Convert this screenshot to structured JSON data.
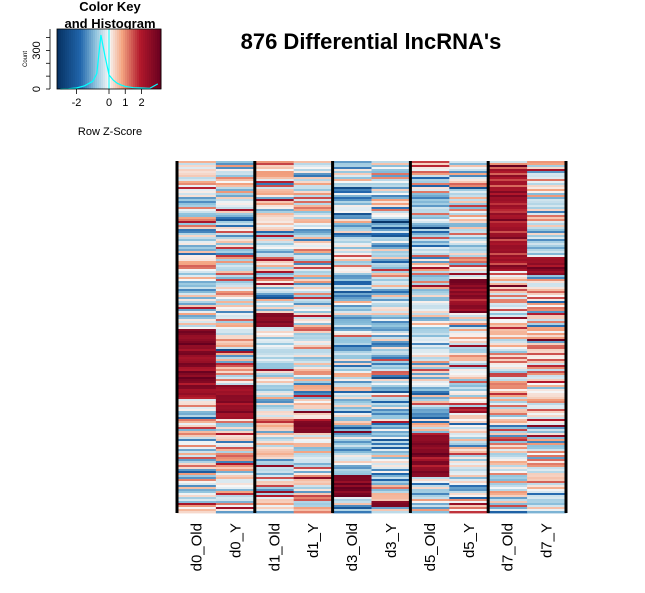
{
  "chart_data": {
    "type": "heatmap",
    "title": "876 Differential lncRNA's",
    "columns": [
      "d0_Old",
      "d0_Y",
      "d1_Old",
      "d1_Y",
      "d3_Old",
      "d3_Y",
      "d5_Old",
      "d5_Y",
      "d7_Old",
      "d7_Y"
    ],
    "row_count": 876,
    "column_groups": [
      {
        "label": "d0",
        "columns": [
          "d0_Old",
          "d0_Y"
        ]
      },
      {
        "label": "d1",
        "columns": [
          "d1_Old",
          "d1_Y"
        ]
      },
      {
        "label": "d3",
        "columns": [
          "d3_Old",
          "d3_Y"
        ]
      },
      {
        "label": "d5",
        "columns": [
          "d5_Old",
          "d5_Y"
        ]
      },
      {
        "label": "d7",
        "columns": [
          "d7_Old",
          "d7_Y"
        ]
      }
    ],
    "color_scale": {
      "low": "#053061",
      "mid_low": "#92c5de",
      "mid": "#f7f7f7",
      "mid_high": "#f4a582",
      "high": "#67001f",
      "range": [
        -3.2,
        3.2
      ]
    },
    "blocks": [
      {
        "column": "d0_Old",
        "from": 0.475,
        "to": 0.675,
        "zscore": 2.6
      },
      {
        "column": "d0_Y",
        "from": 0.635,
        "to": 0.735,
        "zscore": 2.5
      },
      {
        "column": "d1_Old",
        "from": 0.43,
        "to": 0.47,
        "zscore": 2.6
      },
      {
        "column": "d1_Y",
        "from": 0.735,
        "to": 0.775,
        "zscore": 2.6
      },
      {
        "column": "d3_Old",
        "from": 0.89,
        "to": 0.955,
        "zscore": 2.8
      },
      {
        "column": "d3_Y",
        "from": 0.965,
        "to": 0.985,
        "zscore": 2.8
      },
      {
        "column": "d5_Old",
        "from": 0.775,
        "to": 0.895,
        "zscore": 2.6
      },
      {
        "column": "d5_Y",
        "from": 0.335,
        "to": 0.43,
        "zscore": 2.6
      },
      {
        "column": "d7_Old",
        "from": 0.02,
        "to": 0.31,
        "zscore": 2.2
      },
      {
        "column": "d7_Y",
        "from": 0.275,
        "to": 0.325,
        "zscore": 2.5
      }
    ],
    "color_key": {
      "title_line1": "Color Key",
      "title_line2": "and Histogram",
      "xlabel": "Row Z-Score",
      "ylabel": "Count",
      "x_ticks": [
        "-2",
        "0",
        "1",
        "2"
      ],
      "x_tick_values": [
        -2,
        0,
        1,
        2
      ],
      "y_ticks": [
        "0",
        "300"
      ],
      "y_tick_values": [
        0,
        300
      ],
      "histogram_color": "#00ffff",
      "histogram_x": [
        -3.0,
        -2.5,
        -2.0,
        -1.5,
        -1.0,
        -0.75,
        -0.5,
        -0.25,
        0.0,
        0.25,
        0.5,
        0.75,
        1.0,
        1.5,
        2.0,
        2.5,
        3.0
      ],
      "histogram_counts": [
        0,
        2,
        8,
        25,
        60,
        120,
        420,
        260,
        110,
        70,
        45,
        30,
        20,
        10,
        8,
        5,
        40
      ]
    }
  }
}
